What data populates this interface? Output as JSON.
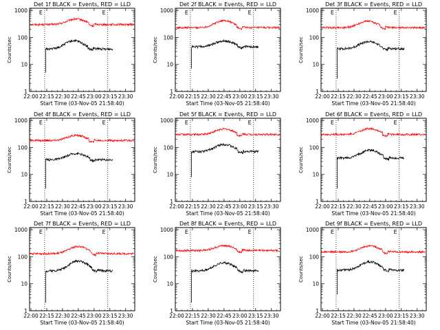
{
  "colors": {
    "events": "#000000",
    "lld": "#ff0000",
    "axis": "#000000",
    "marker": "#000000"
  },
  "chart_data": [
    {
      "type": "line",
      "title": "Det 1f BLACK = Events, RED = LLD"
    },
    {
      "type": "line",
      "title": "Det 2f BLACK = Events, RED = LLD"
    },
    {
      "type": "line",
      "title": "Det 3f BLACK = Events, RED = LLD"
    },
    {
      "type": "line",
      "title": "Det 4f BLACK = Events, RED = LLD"
    },
    {
      "type": "line",
      "title": "Det 5f BLACK = Events, RED = LLD"
    },
    {
      "type": "line",
      "title": "Det 6f BLACK = Events, RED = LLD"
    },
    {
      "type": "line",
      "title": "Det 7f BLACK = Events, RED = LLD"
    },
    {
      "type": "line",
      "title": "Det 8f BLACK = Events, RED = LLD"
    },
    {
      "type": "line",
      "title": "Det 9f BLACK = Events, RED = LLD"
    }
  ],
  "shared": {
    "ylabel": "Counts/sec",
    "xlabel": "Start Time (03-Nov-05 21:58:40)",
    "xticks": [
      "22:00",
      "22:15",
      "22:30",
      "22:45",
      "23:00",
      "23:15",
      "23:30"
    ],
    "yticks": [
      "1",
      "10",
      "100",
      "1000"
    ],
    "xlim": [
      "21:58:40",
      "23:38:40"
    ],
    "ylim": [
      1,
      1200
    ],
    "yscale": "log",
    "marker_lines": [
      "22:13:00",
      "23:13:00"
    ],
    "marker_label": "E"
  },
  "series_params": [
    {
      "events": {
        "start": "22:14",
        "base": 37,
        "peak": 75,
        "peak_t": "22:41",
        "end": "23:18",
        "dip": 5
      },
      "lld": {
        "base": 300,
        "peak": 480,
        "peak_t": "22:43"
      }
    },
    {
      "events": {
        "start": "22:14",
        "base": 45,
        "peak": 75,
        "peak_t": "22:45",
        "end": "23:18",
        "dip": 7
      },
      "lld": {
        "base": 230,
        "peak": 420,
        "peak_t": "22:45"
      }
    },
    {
      "events": {
        "start": "22:14",
        "base": 38,
        "peak": 70,
        "peak_t": "22:44",
        "end": "23:18",
        "dip": 3
      },
      "lld": {
        "base": 230,
        "peak": 400,
        "peak_t": "22:43"
      }
    },
    {
      "events": {
        "start": "22:14",
        "base": 35,
        "peak": 60,
        "peak_t": "22:43",
        "end": "23:18",
        "dip": 3
      },
      "lld": {
        "base": 180,
        "peak": 280,
        "peak_t": "22:43"
      }
    },
    {
      "events": {
        "start": "22:14",
        "base": 70,
        "peak": 130,
        "peak_t": "22:45",
        "end": "23:18",
        "dip": 8
      },
      "lld": {
        "base": 300,
        "peak": 480,
        "peak_t": "22:45"
      }
    },
    {
      "events": {
        "start": "22:14",
        "base": 40,
        "peak": 80,
        "peak_t": "22:45",
        "end": "23:18",
        "dip": 3
      },
      "lld": {
        "base": 300,
        "peak": 500,
        "peak_t": "22:45"
      }
    },
    {
      "events": {
        "start": "22:14",
        "base": 30,
        "peak": 70,
        "peak_t": "22:45",
        "end": "23:18",
        "dip": 2
      },
      "lld": {
        "base": 130,
        "peak": 240,
        "peak_t": "22:45"
      }
    },
    {
      "events": {
        "start": "22:14",
        "base": 30,
        "peak": 60,
        "peak_t": "22:45",
        "end": "23:18",
        "dip": 2
      },
      "lld": {
        "base": 170,
        "peak": 260,
        "peak_t": "22:45"
      }
    },
    {
      "events": {
        "start": "22:14",
        "base": 32,
        "peak": 65,
        "peak_t": "22:45",
        "end": "23:18",
        "dip": 4
      },
      "lld": {
        "base": 150,
        "peak": 250,
        "peak_t": "22:45"
      }
    }
  ]
}
